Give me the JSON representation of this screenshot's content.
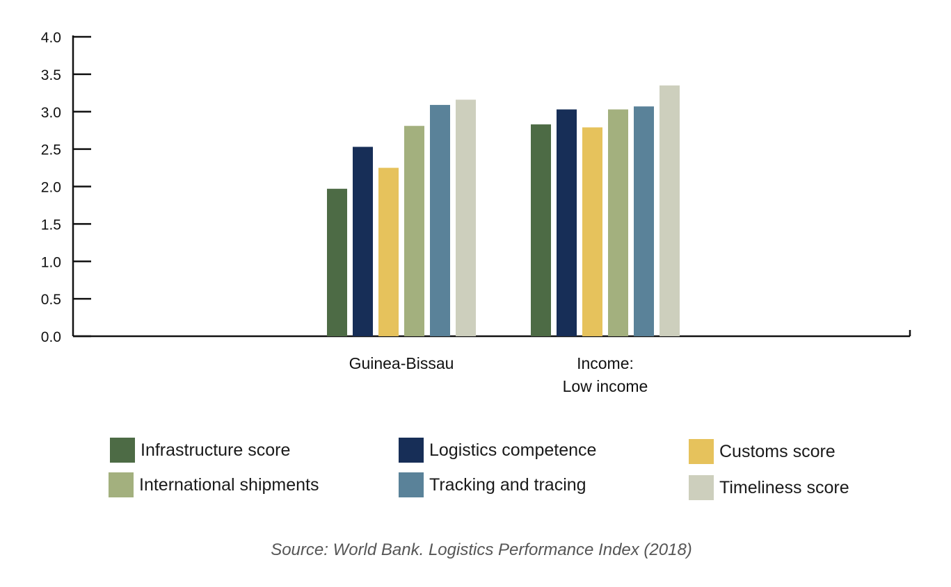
{
  "chart_data": {
    "type": "bar",
    "categories": [
      "Guinea-Bissau",
      "Income:\nLow income"
    ],
    "series": [
      {
        "name": "Infrastructure score",
        "color": "#4d6b45",
        "values": [
          1.97,
          2.83
        ]
      },
      {
        "name": "Logistics competence",
        "color": "#172e57",
        "values": [
          2.53,
          3.03
        ]
      },
      {
        "name": "Customs score",
        "color": "#e6c25c",
        "values": [
          2.25,
          2.79
        ]
      },
      {
        "name": "International shipments",
        "color": "#a3b07e",
        "values": [
          2.81,
          3.03
        ]
      },
      {
        "name": "Tracking and tracing",
        "color": "#5a8299",
        "values": [
          3.09,
          3.07
        ]
      },
      {
        "name": "Timeliness score",
        "color": "#cdcfbd",
        "values": [
          3.16,
          3.35
        ]
      }
    ],
    "yticks": [
      "0.0",
      "0.5",
      "1.0",
      "1.5",
      "2.0",
      "2.5",
      "3.0",
      "3.5",
      "4.0"
    ],
    "ylim": [
      0,
      4
    ],
    "grid": false,
    "legend_position": "bottom"
  },
  "source": "Source: World Bank. Logistics Performance Index (2018)"
}
